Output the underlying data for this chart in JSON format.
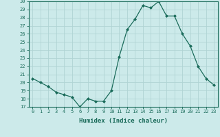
{
  "x": [
    0,
    1,
    2,
    3,
    4,
    5,
    6,
    7,
    8,
    9,
    10,
    11,
    12,
    13,
    14,
    15,
    16,
    17,
    18,
    19,
    20,
    21,
    22,
    23
  ],
  "y": [
    20.5,
    20.0,
    19.5,
    18.8,
    18.5,
    18.2,
    17.0,
    18.0,
    17.7,
    17.7,
    19.0,
    23.2,
    26.5,
    27.8,
    29.5,
    29.2,
    30.0,
    28.2,
    28.2,
    26.0,
    24.5,
    22.0,
    20.5,
    19.7
  ],
  "xlabel": "Humidex (Indice chaleur)",
  "ylim": [
    17,
    30
  ],
  "xlim_min": -0.5,
  "xlim_max": 23.5,
  "yticks": [
    17,
    18,
    19,
    20,
    21,
    22,
    23,
    24,
    25,
    26,
    27,
    28,
    29,
    30
  ],
  "xticks": [
    0,
    1,
    2,
    3,
    4,
    5,
    6,
    7,
    8,
    9,
    10,
    11,
    12,
    13,
    14,
    15,
    16,
    17,
    18,
    19,
    20,
    21,
    22,
    23
  ],
  "line_color": "#1a6b5a",
  "marker": "D",
  "marker_size": 2.0,
  "bg_color": "#cceaea",
  "grid_color": "#b0d4d4",
  "axis_color": "#1a6b5a",
  "label_color": "#1a6b5a",
  "tick_fontsize": 5.0,
  "xlabel_fontsize": 6.5,
  "linewidth": 0.9
}
